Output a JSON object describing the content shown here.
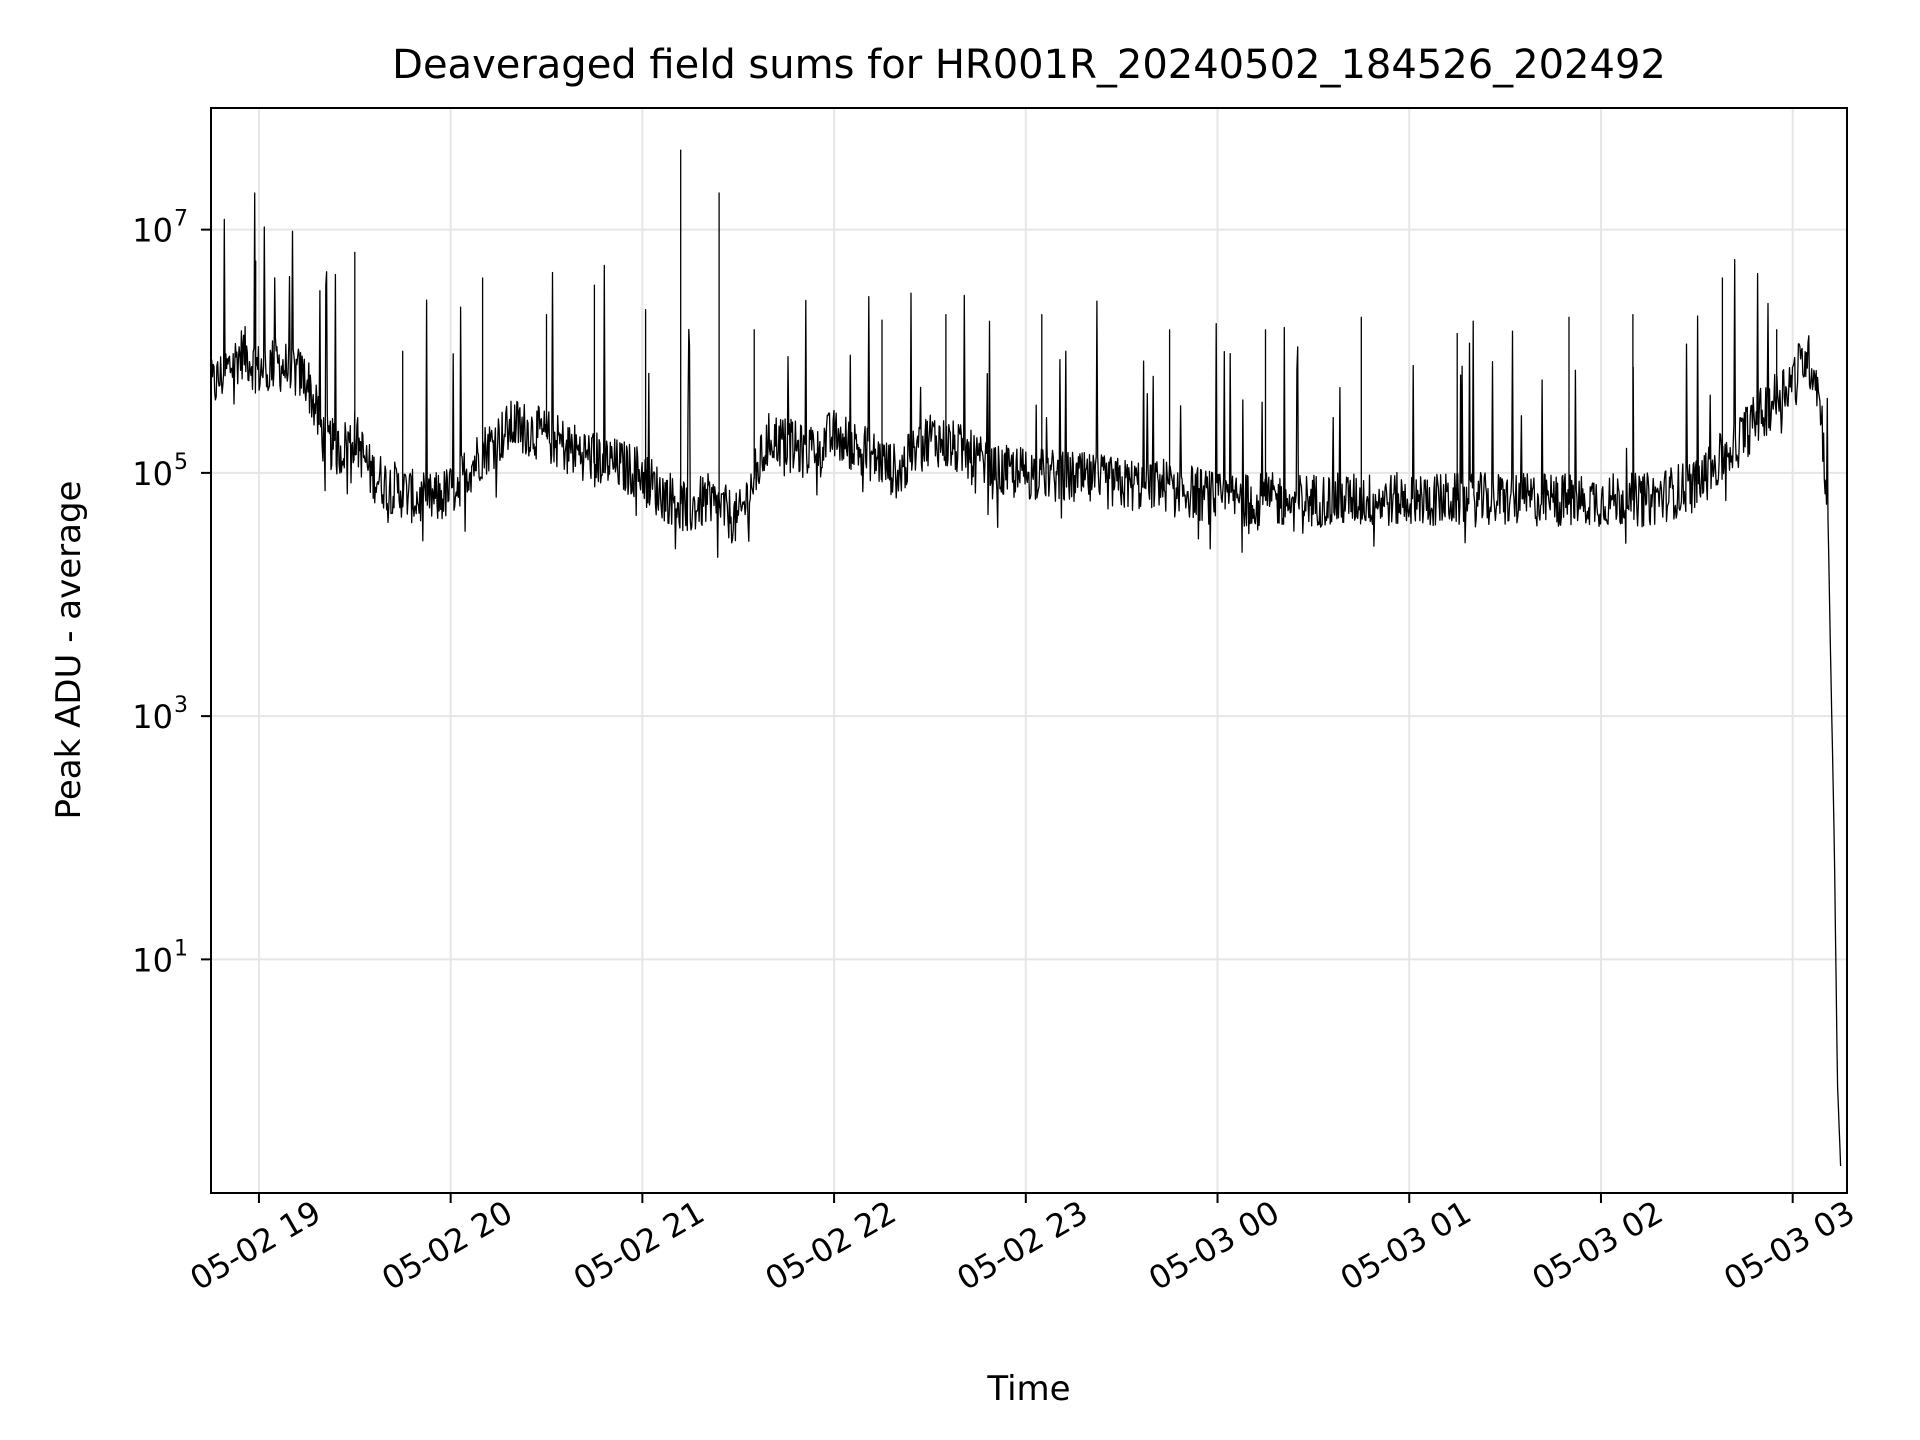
{
  "chart_data": {
    "type": "line",
    "title": "Deaveraged field sums for HR001R_20240502_184526_202492",
    "xlabel": "Time",
    "ylabel": "Peak ADU - average",
    "yscale": "log",
    "grid": true,
    "xlim": [
      "2024-05-02 18:45",
      "2024-05-03 03:17"
    ],
    "ylim": [
      0.12,
      100000000
    ],
    "x_tick_labels": [
      "05-02 19",
      "05-02 20",
      "05-02 21",
      "05-02 22",
      "05-02 23",
      "05-03 00",
      "05-03 01",
      "05-03 02",
      "05-03 03"
    ],
    "x_tick_values": [
      "2024-05-02 19:00",
      "2024-05-02 20:00",
      "2024-05-02 21:00",
      "2024-05-02 22:00",
      "2024-05-02 23:00",
      "2024-05-03 00:00",
      "2024-05-03 01:00",
      "2024-05-03 02:00",
      "2024-05-03 03:00"
    ],
    "y_ticks": [
      {
        "value": 10,
        "base": "10",
        "exp": "1"
      },
      {
        "value": 1000,
        "base": "10",
        "exp": "3"
      },
      {
        "value": 100000,
        "base": "10",
        "exp": "5"
      },
      {
        "value": 10000000,
        "base": "10",
        "exp": "7"
      }
    ],
    "series": [
      {
        "color": "#000000",
        "x": [
          "2024-05-02 18:45",
          "2024-05-02 18:50",
          "2024-05-02 18:55",
          "2024-05-02 19:00",
          "2024-05-02 19:05",
          "2024-05-02 19:10",
          "2024-05-02 19:15",
          "2024-05-02 19:20",
          "2024-05-02 19:25",
          "2024-05-02 19:30",
          "2024-05-02 19:35",
          "2024-05-02 19:40",
          "2024-05-02 19:45",
          "2024-05-02 19:50",
          "2024-05-02 19:55",
          "2024-05-02 20:00",
          "2024-05-02 20:10",
          "2024-05-02 20:20",
          "2024-05-02 20:30",
          "2024-05-02 20:40",
          "2024-05-02 20:50",
          "2024-05-02 21:00",
          "2024-05-02 21:05",
          "2024-05-02 21:10",
          "2024-05-02 21:15",
          "2024-05-02 21:20",
          "2024-05-02 21:25",
          "2024-05-02 21:30",
          "2024-05-02 21:40",
          "2024-05-02 21:50",
          "2024-05-02 22:00",
          "2024-05-02 22:10",
          "2024-05-02 22:20",
          "2024-05-02 22:30",
          "2024-05-02 22:40",
          "2024-05-02 22:50",
          "2024-05-02 23:00",
          "2024-05-02 23:15",
          "2024-05-02 23:30",
          "2024-05-02 23:45",
          "2024-05-03 00:00",
          "2024-05-03 00:15",
          "2024-05-03 00:30",
          "2024-05-03 00:45",
          "2024-05-03 01:00",
          "2024-05-03 01:15",
          "2024-05-03 01:30",
          "2024-05-03 01:45",
          "2024-05-03 02:00",
          "2024-05-03 02:15",
          "2024-05-03 02:30",
          "2024-05-03 02:40",
          "2024-05-03 02:50",
          "2024-05-03 03:00",
          "2024-05-03 03:04",
          "2024-05-03 03:07",
          "2024-05-03 03:09",
          "2024-05-03 03:11",
          "2024-05-03 03:12",
          "2024-05-03 03:13",
          "2024-05-03 03:14",
          "2024-05-03 03:15"
        ],
        "y": [
          500000,
          700000,
          1000000,
          700000,
          800000,
          700000,
          600000,
          200000,
          150000,
          200000,
          100000,
          80000,
          70000,
          60000,
          60000,
          70000,
          150000,
          250000,
          200000,
          150000,
          120000,
          100000,
          70000,
          60000,
          50000,
          60000,
          50000,
          40000,
          200000,
          150000,
          200000,
          150000,
          100000,
          200000,
          150000,
          100000,
          100000,
          90000,
          80000,
          80000,
          60000,
          60000,
          60000,
          60000,
          60000,
          60000,
          60000,
          60000,
          60000,
          60000,
          80000,
          150000,
          300000,
          600000,
          900000,
          700000,
          300000,
          50000,
          2000,
          100,
          1,
          0.2
        ],
        "spikes": [
          {
            "x": "2024-05-02 18:59",
            "y": 5500000
          },
          {
            "x": "2024-05-02 19:30",
            "y": 6500000
          },
          {
            "x": "2024-05-02 19:45",
            "y": 1000000
          },
          {
            "x": "2024-05-02 20:10",
            "y": 4000000
          },
          {
            "x": "2024-05-02 20:30",
            "y": 2000000
          },
          {
            "x": "2024-05-02 20:45",
            "y": 3500000
          },
          {
            "x": "2024-05-02 21:01",
            "y": 2200000
          },
          {
            "x": "2024-05-02 21:12",
            "y": 45000000
          },
          {
            "x": "2024-05-02 21:24",
            "y": 20000000
          },
          {
            "x": "2024-05-02 21:35",
            "y": 1500000
          },
          {
            "x": "2024-05-02 22:15",
            "y": 1800000
          },
          {
            "x": "2024-05-02 22:35",
            "y": 2000000
          },
          {
            "x": "2024-05-02 23:05",
            "y": 2000000
          },
          {
            "x": "2024-05-02 23:45",
            "y": 1500000
          },
          {
            "x": "2024-05-03 00:15",
            "y": 1500000
          },
          {
            "x": "2024-05-03 00:45",
            "y": 1900000
          },
          {
            "x": "2024-05-03 01:15",
            "y": 1400000
          },
          {
            "x": "2024-05-03 01:50",
            "y": 1900000
          },
          {
            "x": "2024-05-03 02:10",
            "y": 2000000
          },
          {
            "x": "2024-05-03 02:38",
            "y": 4000000
          },
          {
            "x": "2024-05-03 02:55",
            "y": 1500000
          }
        ]
      }
    ]
  }
}
